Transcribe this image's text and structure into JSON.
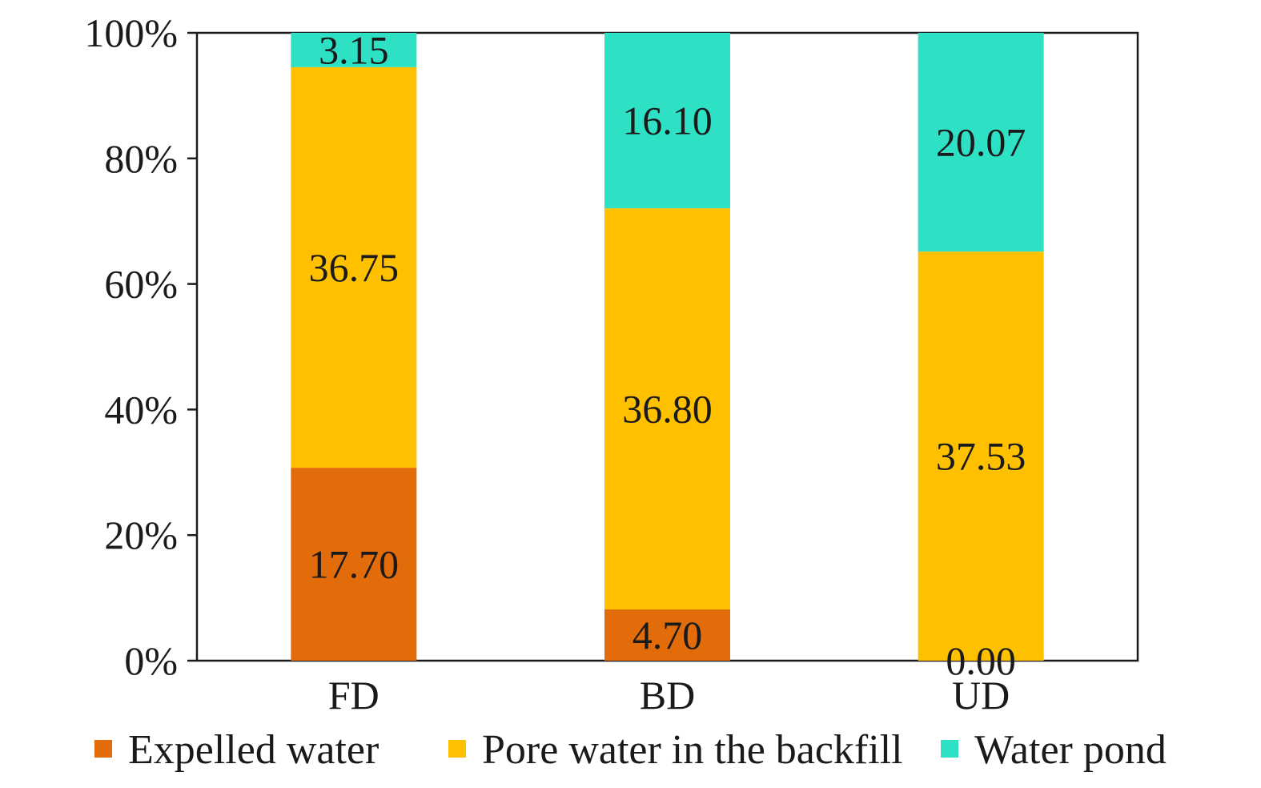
{
  "chart_data": {
    "type": "bar",
    "stacked": "percent",
    "categories": [
      "FD",
      "BD",
      "UD"
    ],
    "series": [
      {
        "name": "Expelled water",
        "color": "#E36C0A",
        "values": [
          17.7,
          4.7,
          0.0
        ],
        "labels": [
          "17.70",
          "4.70",
          "0.00"
        ]
      },
      {
        "name": "Pore water in the backfill",
        "color": "#FFC000",
        "values": [
          36.75,
          36.8,
          37.53
        ],
        "labels": [
          "36.75",
          "36.80",
          "37.53"
        ]
      },
      {
        "name": "Water pond",
        "color": "#2EE0C4",
        "values": [
          3.15,
          16.1,
          20.07
        ],
        "labels": [
          "3.15",
          "16.10",
          "20.07"
        ]
      }
    ],
    "y_ticks": [
      "0%",
      "20%",
      "40%",
      "60%",
      "80%",
      "100%"
    ],
    "ylim": [
      0,
      100
    ],
    "grid": false,
    "legend_position": "bottom"
  }
}
